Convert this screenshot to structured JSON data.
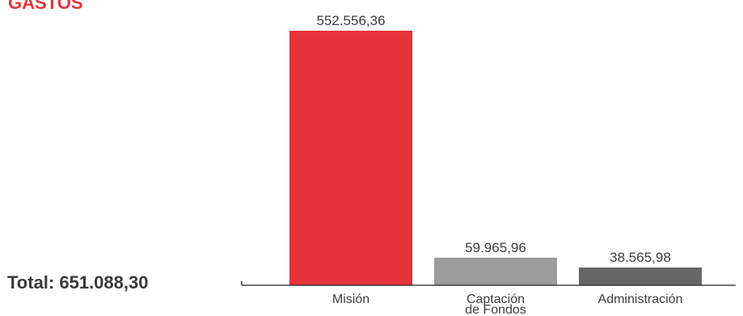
{
  "chart_data": {
    "type": "bar",
    "title": "GASTOS",
    "total_label": "Total: 651.088,30",
    "categories": [
      [
        "Misión"
      ],
      [
        "Captación",
        "de Fondos"
      ],
      [
        "Administración"
      ]
    ],
    "values": [
      552556.36,
      59965.96,
      38565.98
    ],
    "value_labels": [
      "552.556,36",
      "59.965,96",
      "38.565,98"
    ],
    "colors": [
      "#e5333b",
      "#9b9b9b",
      "#666666"
    ],
    "title_color": "#e5333b",
    "ylim": [
      0,
      552556.36
    ],
    "grid": false,
    "legend": "none"
  }
}
